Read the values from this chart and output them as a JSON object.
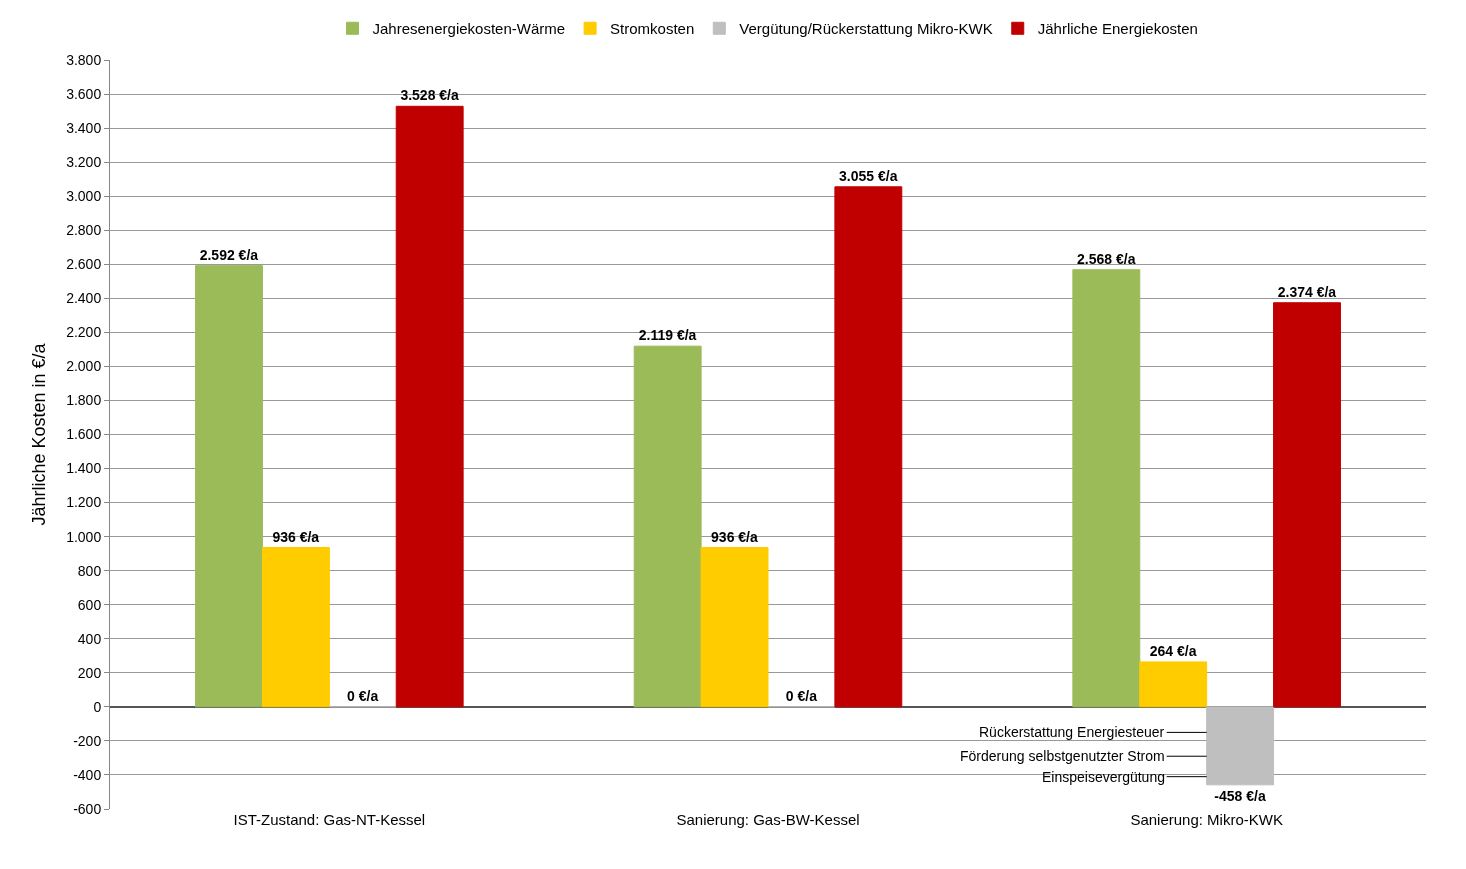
{
  "chart_data": {
    "type": "bar",
    "categories": [
      "IST-Zustand: Gas-NT-Kessel",
      "Sanierung: Gas-BW-Kessel",
      "Sanierung: Mikro-KWK"
    ],
    "ylabel": "Jährliche Kosten in €/a",
    "series": [
      {
        "name": "Jahresenergiekosten-Wärme",
        "color": "#9bbb59",
        "values": [
          2592,
          2119,
          2568
        ],
        "value_labels": [
          "2.592 €/a",
          "2.119 €/a",
          "2.568 €/a"
        ]
      },
      {
        "name": "Stromkosten",
        "color": "#ffcc00",
        "values": [
          936,
          936,
          264
        ],
        "value_labels": [
          "936 €/a",
          "936 €/a",
          "264 €/a"
        ]
      },
      {
        "name": "Vergütung/Rückerstattung Mikro-KWK",
        "color": "#bfbfbf",
        "values": [
          0,
          0,
          -458
        ],
        "value_labels": [
          "0 €/a",
          "0 €/a",
          "-458 €/a"
        ]
      },
      {
        "name": "Jährliche Energiekosten",
        "color": "#c00000",
        "values": [
          3528,
          3055,
          2374
        ],
        "value_labels": [
          "3.528 €/a",
          "3.055 €/a",
          "2.374 €/a"
        ]
      }
    ],
    "ylim": [
      -600,
      3800
    ],
    "yticks": [
      {
        "value": -600,
        "label": "-600"
      },
      {
        "value": -400,
        "label": "-400"
      },
      {
        "value": -200,
        "label": "-200"
      },
      0,
      200,
      400,
      600,
      800,
      {
        "value": 1000,
        "label": "1.000"
      },
      {
        "value": 1200,
        "label": "1.200"
      },
      {
        "value": 1400,
        "label": "1.400"
      },
      {
        "value": 1600,
        "label": "1.600"
      },
      {
        "value": 1800,
        "label": "1.800"
      },
      {
        "value": 2000,
        "label": "2.000"
      },
      {
        "value": 2200,
        "label": "2.200"
      },
      {
        "value": 2400,
        "label": "2.400"
      },
      {
        "value": 2600,
        "label": "2.600"
      },
      {
        "value": 2800,
        "label": "2.800"
      },
      {
        "value": 3000,
        "label": "3.000"
      },
      {
        "value": 3200,
        "label": "3.200"
      },
      {
        "value": 3400,
        "label": "3.400"
      },
      {
        "value": 3600,
        "label": "3.600"
      },
      {
        "value": 3800,
        "label": "3.800"
      }
    ],
    "annotations": [
      {
        "text": "Rückerstattung Energiesteuer",
        "x": "Sanierung: Mikro-KWK",
        "y": -150
      },
      {
        "text": "Förderung selbstgenutzter Strom",
        "x": "Sanierung: Mikro-KWK",
        "y": -290
      },
      {
        "text": "Einspeisevergütung",
        "x": "Sanierung: Mikro-KWK",
        "y": -410
      }
    ],
    "grid": "y",
    "legend": "top"
  }
}
